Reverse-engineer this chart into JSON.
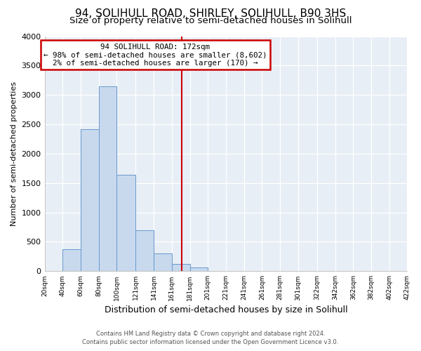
{
  "title": "94, SOLIHULL ROAD, SHIRLEY, SOLIHULL, B90 3HS",
  "subtitle": "Size of property relative to semi-detached houses in Solihull",
  "xlabel": "Distribution of semi-detached houses by size in Solihull",
  "ylabel": "Number of semi-detached properties",
  "footer_line1": "Contains HM Land Registry data © Crown copyright and database right 2024.",
  "footer_line2": "Contains public sector information licensed under the Open Government Licence v3.0.",
  "bin_edges": [
    20,
    40,
    60,
    80,
    100,
    121,
    141,
    161,
    181,
    201,
    221,
    241,
    261,
    281,
    301,
    322,
    342,
    362,
    382,
    402,
    422
  ],
  "bin_heights": [
    0,
    375,
    2420,
    3150,
    1640,
    700,
    300,
    125,
    60,
    0,
    0,
    0,
    0,
    0,
    0,
    0,
    0,
    0,
    0,
    0
  ],
  "bar_facecolor": "#c8d9ee",
  "bar_edgecolor": "#6699cc",
  "property_size": 172,
  "vline_color": "#cc0000",
  "annotation_title": "94 SOLIHULL ROAD: 172sqm",
  "annotation_line2": "← 98% of semi-detached houses are smaller (8,602)",
  "annotation_line3": "2% of semi-detached houses are larger (170) →",
  "annotation_box_edgecolor": "#cc0000",
  "annotation_box_facecolor": "#ffffff",
  "ylim": [
    0,
    4000
  ],
  "yticks": [
    0,
    500,
    1000,
    1500,
    2000,
    2500,
    3000,
    3500,
    4000
  ],
  "background_color": "#ffffff",
  "plot_bg_color": "#e8eef5",
  "title_fontsize": 11,
  "subtitle_fontsize": 9.5,
  "grid_color": "#ffffff"
}
